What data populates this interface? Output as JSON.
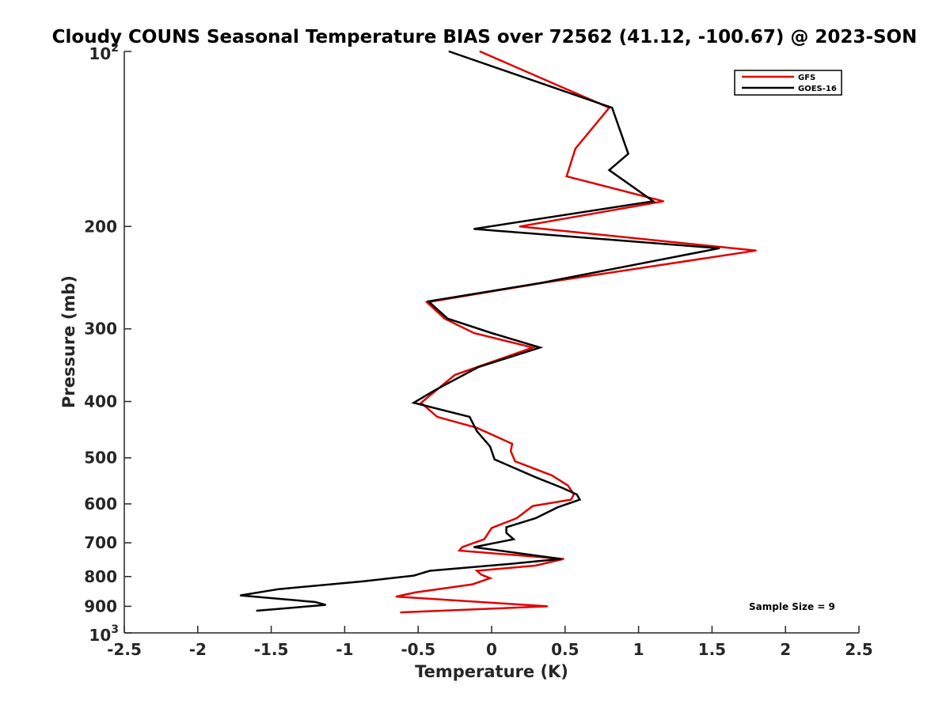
{
  "chart_data": {
    "type": "line",
    "title": "Cloudy COUNS Seasonal Temperature BIAS over 72562 (41.12, -100.67) @ 2023-SON",
    "xlabel": "Temperature (K)",
    "ylabel": "Pressure (mb)",
    "xlim": [
      -2.5,
      2.5
    ],
    "ylim": [
      100,
      1000
    ],
    "yscale": "log",
    "y_reversed": true,
    "xticks": [
      -2.5,
      -2,
      -1.5,
      -1,
      -0.5,
      0,
      0.5,
      1,
      1.5,
      2,
      2.5
    ],
    "xtick_labels": [
      "-2.5",
      "-2",
      "-1.5",
      "-1",
      "-0.5",
      "0",
      "0.5",
      "1",
      "1.5",
      "2",
      "2.5"
    ],
    "yticks": [
      200,
      300,
      400,
      500,
      600,
      700,
      800,
      900
    ],
    "ytick_labels": [
      "200",
      "300",
      "400",
      "500",
      "600",
      "700",
      "800",
      "900"
    ],
    "ytick_100_base": "10",
    "ytick_100_exp": "2",
    "ytick_1000_base": "10",
    "ytick_1000_exp": "3",
    "legend_position": "top-right",
    "annotation": "Sample Size = 9",
    "series": [
      {
        "name": "GFS",
        "color": "#e00000",
        "x": [
          -0.08,
          0.8,
          0.57,
          0.51,
          1.17,
          0.19,
          1.8,
          0.35,
          -0.44,
          -0.32,
          -0.12,
          0.28,
          -0.25,
          -0.48,
          -0.37,
          -0.1,
          0.14,
          0.13,
          0.16,
          0.41,
          0.52,
          0.56,
          0.54,
          0.28,
          0.17,
          0.0,
          -0.05,
          -0.2,
          -0.22,
          0.49,
          0.3,
          -0.1,
          -0.07,
          -0.01,
          -0.13,
          -0.52,
          -0.65,
          0.38,
          -0.62
        ],
        "y": [
          100,
          125,
          147,
          164,
          181,
          200,
          220,
          250,
          270,
          288,
          305,
          323,
          360,
          402,
          425,
          444,
          473,
          487,
          507,
          536,
          558,
          578,
          590,
          605,
          635,
          660,
          690,
          712,
          722,
          746,
          766,
          782,
          794,
          805,
          825,
          852,
          866,
          900,
          922
        ]
      },
      {
        "name": "GOES-16",
        "color": "#000000",
        "x": [
          -0.29,
          0.82,
          0.93,
          0.8,
          1.1,
          -0.12,
          1.55,
          0.34,
          -0.43,
          -0.3,
          0.0,
          0.33,
          -0.09,
          -0.39,
          -0.53,
          -0.15,
          -0.1,
          -0.01,
          0.02,
          0.3,
          0.48,
          0.58,
          0.6,
          0.45,
          0.3,
          0.1,
          0.1,
          0.15,
          -0.12,
          0.47,
          0.15,
          -0.42,
          -0.53,
          -0.87,
          -1.45,
          -1.71,
          -1.2,
          -1.13,
          -1.6
        ],
        "y": [
          100,
          125,
          150,
          160,
          181,
          202,
          218,
          250,
          269,
          288,
          305,
          323,
          349,
          383,
          402,
          425,
          450,
          478,
          503,
          540,
          563,
          578,
          590,
          608,
          635,
          658,
          673,
          690,
          712,
          746,
          760,
          782,
          797,
          815,
          841,
          862,
          885,
          895,
          916
        ]
      }
    ]
  }
}
